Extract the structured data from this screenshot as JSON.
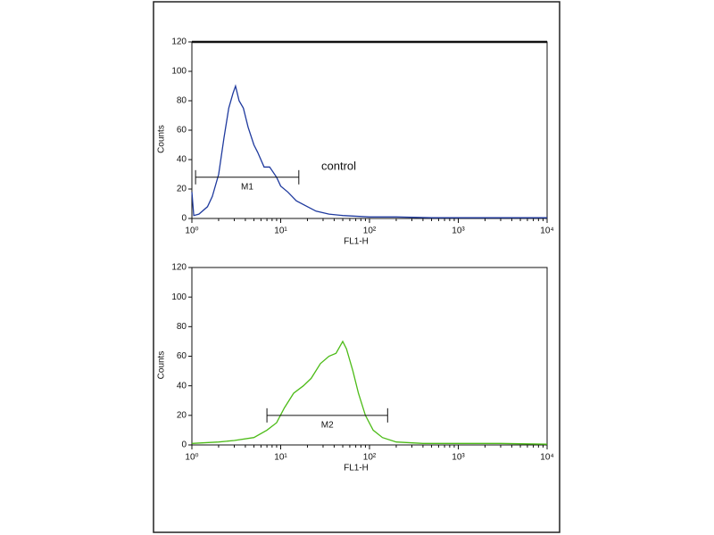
{
  "chart_data": [
    {
      "type": "line",
      "xlabel": "FL1-H",
      "ylabel": "Counts",
      "log_x": true,
      "color": "#1f3a9e",
      "xlim": [
        1,
        10000
      ],
      "ylim": [
        0,
        120
      ],
      "xticks": [
        {
          "value": 1,
          "label": "10⁰"
        },
        {
          "value": 10,
          "label": "10¹"
        },
        {
          "value": 100,
          "label": "10²"
        },
        {
          "value": 1000,
          "label": "10³"
        },
        {
          "value": 10000,
          "label": "10⁴"
        }
      ],
      "yticks": [
        0,
        20,
        40,
        60,
        80,
        100,
        120
      ],
      "x": [
        1,
        1.05,
        1.2,
        1.5,
        1.7,
        2,
        2.3,
        2.6,
        2.9,
        3.1,
        3.4,
        3.8,
        4.3,
        5,
        5.5,
        6.5,
        7.5,
        9,
        10,
        12,
        15,
        20,
        25,
        35,
        50,
        100,
        200,
        500,
        1000,
        10000
      ],
      "values": [
        18,
        2,
        3,
        8,
        15,
        30,
        55,
        75,
        85,
        90,
        80,
        75,
        62,
        50,
        45,
        35,
        35,
        28,
        22,
        18,
        12,
        8,
        5,
        3,
        2,
        1,
        1,
        0.5,
        0.5,
        0.5
      ],
      "marker": {
        "label": "M1",
        "range": [
          1.1,
          16
        ],
        "y": 28
      },
      "annotation": "control"
    },
    {
      "type": "line",
      "xlabel": "FL1-H",
      "ylabel": "Counts",
      "log_x": true,
      "color": "#4cbb17",
      "xlim": [
        1,
        10000
      ],
      "ylim": [
        0,
        120
      ],
      "xticks": [
        {
          "value": 1,
          "label": "10⁰"
        },
        {
          "value": 10,
          "label": "10¹"
        },
        {
          "value": 100,
          "label": "10²"
        },
        {
          "value": 1000,
          "label": "10³"
        },
        {
          "value": 10000,
          "label": "10⁴"
        }
      ],
      "yticks": [
        0,
        20,
        40,
        60,
        80,
        100,
        120
      ],
      "x": [
        1,
        2,
        3,
        5,
        7,
        9,
        11,
        14,
        18,
        22,
        28,
        35,
        42,
        50,
        55,
        65,
        75,
        90,
        110,
        140,
        200,
        400,
        1000,
        3000,
        10000
      ],
      "values": [
        1,
        2,
        3,
        5,
        10,
        15,
        25,
        35,
        40,
        45,
        55,
        60,
        62,
        70,
        65,
        50,
        35,
        20,
        10,
        5,
        2,
        1,
        1,
        1,
        0.5
      ],
      "marker": {
        "label": "M2",
        "range": [
          7,
          160
        ],
        "y": 20
      }
    }
  ]
}
